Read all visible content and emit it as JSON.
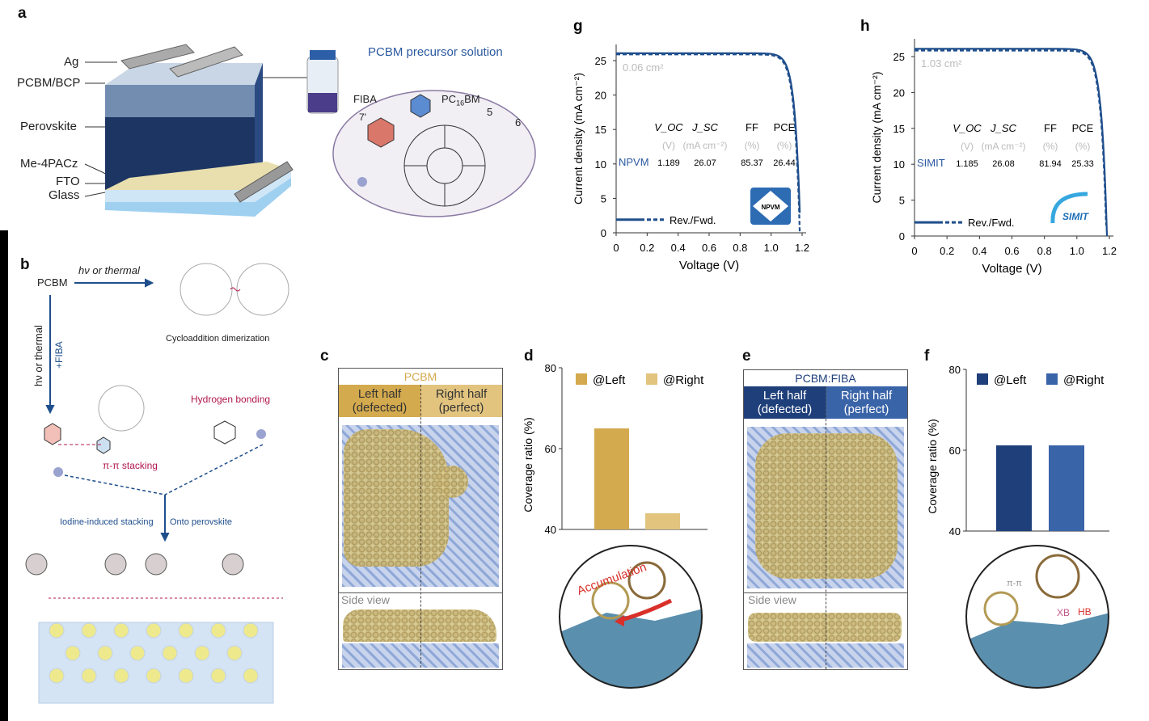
{
  "panel_a": {
    "label": "a",
    "layers": [
      "Ag",
      "PCBM/BCP",
      "Perovskite",
      "Me-4PACz",
      "FTO",
      "Glass"
    ],
    "solution_title": "PCBM precursor solution",
    "fiba": "FIBA",
    "pcbm": "PC",
    "pcbm_sub": "16",
    "pcbm_suffix": "BM",
    "num_7": "7'",
    "num_5": "5",
    "num_6": "6"
  },
  "panel_b": {
    "label": "b",
    "pcbm": "PCBM",
    "hv_thermal_top": "hν or thermal",
    "dimerization": "Cycloaddition dimerization",
    "hv_thermal_side": "hν or thermal",
    "plus_fiba": "+FIBA",
    "hydrogen_bonding": "Hydrogen bonding",
    "pi_stacking": "π-π stacking",
    "iodine": "Iodine-induced stacking",
    "onto": "Onto perovskite"
  },
  "panel_c": {
    "label": "c",
    "title": "PCBM",
    "left": "Left half\n(defected)",
    "right": "Right half\n(perfect)",
    "side": "Side view",
    "header_color": "#d4aa4e",
    "header_color2": "#e2c47f"
  },
  "panel_e": {
    "label": "e",
    "title": "PCBM:FIBA",
    "left": "Left half\n(defected)",
    "right": "Right half\n(perfect)",
    "side": "Side view",
    "header_color": "#1f3f7a",
    "header_color2": "#3a64a8"
  },
  "panel_d_inset": {
    "annotation": "Accumulation"
  },
  "panel_f_inset": {
    "pi": "π-π",
    "xb": "XB",
    "hb": "HB"
  },
  "chart_data": [
    {
      "panel": "g",
      "type": "line",
      "xlabel": "Voltage (V)",
      "ylabel": "Current density (mA cm⁻²)",
      "xlim": [
        0,
        1.2
      ],
      "ylim": [
        0,
        27
      ],
      "xticks": [
        "0",
        "0.2",
        "0.4",
        "0.6",
        "0.8",
        "1.0",
        "1.2"
      ],
      "yticks": [
        "0",
        "5",
        "10",
        "15",
        "20",
        "25"
      ],
      "area": "0.06 cm²",
      "legend": "Rev./Fwd.",
      "logo": "NPVM",
      "table": {
        "headers": [
          "V_OC",
          "J_SC",
          "FF",
          "PCE"
        ],
        "units": [
          "(V)",
          "(mA cm⁻²)",
          "(%)",
          "(%)"
        ],
        "row_label": "NPVM",
        "values": [
          "1.189",
          "26.07",
          "85.37",
          "26.44"
        ]
      },
      "series": [
        {
          "style": "solid",
          "voc": 1.189,
          "jsc": 26.07
        },
        {
          "style": "dashed",
          "voc": 1.185,
          "jsc": 25.9
        }
      ],
      "color": "#1f4e8c"
    },
    {
      "panel": "h",
      "type": "line",
      "xlabel": "Voltage (V)",
      "ylabel": "Current density (mA cm⁻²)",
      "xlim": [
        0,
        1.2
      ],
      "ylim": [
        0,
        27
      ],
      "xticks": [
        "0",
        "0.2",
        "0.4",
        "0.6",
        "0.8",
        "1.0",
        "1.2"
      ],
      "yticks": [
        "0",
        "5",
        "10",
        "15",
        "20",
        "25"
      ],
      "area": "1.03 cm²",
      "legend": "Rev./Fwd.",
      "logo": "SIMIT",
      "table": {
        "headers": [
          "V_OC",
          "J_SC",
          "FF",
          "PCE"
        ],
        "units": [
          "(V)",
          "(mA cm⁻²)",
          "(%)",
          "(%)"
        ],
        "row_label": "SIMIT",
        "values": [
          "1.185",
          "26.08",
          "81.94",
          "25.33"
        ]
      },
      "series": [
        {
          "style": "solid",
          "voc": 1.185,
          "jsc": 26.08
        },
        {
          "style": "dashed",
          "voc": 1.182,
          "jsc": 25.85
        }
      ],
      "color": "#1f4e8c"
    },
    {
      "panel": "d",
      "type": "bar",
      "ylabel": "Coverage ratio (%)",
      "ylim": [
        40,
        80
      ],
      "yticks": [
        "40",
        "60",
        "80"
      ],
      "categories": [
        "@Left",
        "@Right"
      ],
      "values": [
        65,
        44
      ],
      "colors": [
        "#d4aa4e",
        "#e2c47f"
      ]
    },
    {
      "panel": "f",
      "type": "bar",
      "ylabel": "Coverage ratio (%)",
      "ylim": [
        40,
        80
      ],
      "yticks": [
        "40",
        "60",
        "80"
      ],
      "categories": [
        "@Left",
        "@Right"
      ],
      "values": [
        61.2,
        61.2
      ],
      "colors": [
        "#1f3f7a",
        "#3a64a8"
      ]
    }
  ]
}
